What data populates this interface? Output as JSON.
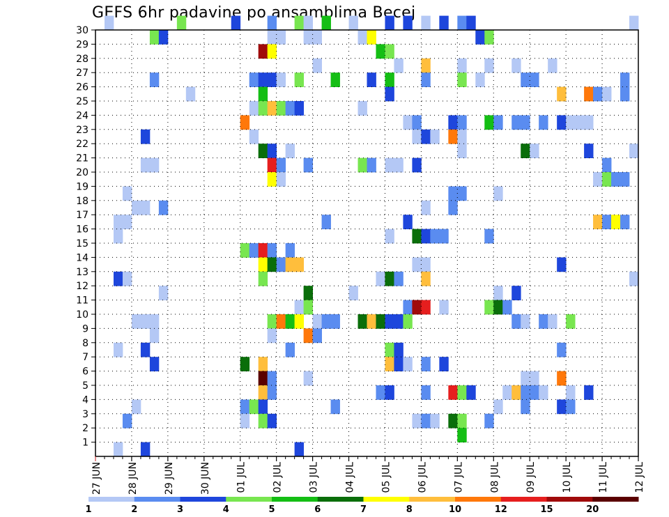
{
  "chart_data": {
    "type": "heatmap",
    "title": "GEFS 6hr padavine po ansamblima Becej",
    "xlabel": "",
    "ylabel": "",
    "x_tick_labels": [
      "27 JUN",
      "28 JUN",
      "29 JUN",
      "30 JUN",
      "01 JUL",
      "02 JUL",
      "03 JUL",
      "04 JUL",
      "05 JUL",
      "06 JUL",
      "07 JUL",
      "08 JUL",
      "09 JUL",
      "10 JUL",
      "11 JUL",
      "12 JUL"
    ],
    "y_tick_labels": [
      "1",
      "2",
      "3",
      "4",
      "5",
      "6",
      "7",
      "8",
      "9",
      "10",
      "11",
      "12",
      "13",
      "14",
      "15",
      "16",
      "17",
      "18",
      "19",
      "20",
      "21",
      "22",
      "23",
      "24",
      "25",
      "26",
      "27",
      "28",
      "29",
      "30"
    ],
    "xlim": [
      0,
      60
    ],
    "ylim": [
      0,
      30
    ],
    "x_unit": "6-hour steps from 27 JUN 00z",
    "grid": true,
    "legend": {
      "placement": "bottom",
      "thresholds": [
        "1",
        "2",
        "3",
        "4",
        "5",
        "6",
        "7",
        "8",
        "10",
        "12",
        "15",
        "20"
      ],
      "colors": [
        "#b4c8f5",
        "#5a8cf0",
        "#1e46dc",
        "#78e650",
        "#14be14",
        "#0a6e0a",
        "#ffff00",
        "#ffbe3c",
        "#ff780a",
        "#e61e1e",
        "#a00a0a",
        "#5a0000"
      ]
    },
    "cells": [
      [
        1,
        30,
        0
      ],
      [
        9,
        30,
        3
      ],
      [
        15,
        30,
        2
      ],
      [
        19,
        30,
        1
      ],
      [
        22,
        30,
        3
      ],
      [
        23,
        30,
        0
      ],
      [
        25,
        30,
        4
      ],
      [
        28,
        30,
        0
      ],
      [
        32,
        30,
        2
      ],
      [
        34,
        30,
        2
      ],
      [
        36,
        30,
        0
      ],
      [
        38,
        30,
        2
      ],
      [
        40,
        30,
        1
      ],
      [
        41,
        30,
        2
      ],
      [
        59,
        30,
        0
      ],
      [
        6,
        29,
        3
      ],
      [
        7,
        29,
        2
      ],
      [
        19,
        29,
        0
      ],
      [
        20,
        29,
        0
      ],
      [
        23,
        29,
        0
      ],
      [
        24,
        29,
        0
      ],
      [
        29,
        29,
        0
      ],
      [
        30,
        29,
        6
      ],
      [
        42,
        29,
        2
      ],
      [
        43,
        29,
        3
      ],
      [
        18,
        28,
        10
      ],
      [
        19,
        28,
        6
      ],
      [
        31,
        28,
        4
      ],
      [
        32,
        28,
        3
      ],
      [
        24,
        27,
        0
      ],
      [
        33,
        27,
        0
      ],
      [
        36,
        27,
        7
      ],
      [
        40,
        27,
        0
      ],
      [
        43,
        27,
        0
      ],
      [
        46,
        27,
        0
      ],
      [
        50,
        27,
        0
      ],
      [
        6,
        26,
        1
      ],
      [
        17,
        26,
        1
      ],
      [
        18,
        26,
        2
      ],
      [
        19,
        26,
        2
      ],
      [
        20,
        26,
        0
      ],
      [
        22,
        26,
        3
      ],
      [
        26,
        26,
        4
      ],
      [
        30,
        26,
        2
      ],
      [
        32,
        26,
        4
      ],
      [
        36,
        26,
        1
      ],
      [
        40,
        26,
        3
      ],
      [
        42,
        26,
        0
      ],
      [
        47,
        26,
        1
      ],
      [
        48,
        26,
        1
      ],
      [
        58,
        26,
        1
      ],
      [
        10,
        25,
        0
      ],
      [
        18,
        25,
        4
      ],
      [
        32,
        25,
        2
      ],
      [
        51,
        25,
        7
      ],
      [
        54,
        25,
        8
      ],
      [
        55,
        25,
        1
      ],
      [
        56,
        25,
        0
      ],
      [
        58,
        25,
        1
      ],
      [
        17,
        24,
        0
      ],
      [
        18,
        24,
        3
      ],
      [
        19,
        24,
        7
      ],
      [
        20,
        24,
        3
      ],
      [
        21,
        24,
        1
      ],
      [
        22,
        24,
        2
      ],
      [
        29,
        24,
        0
      ],
      [
        16,
        23,
        8
      ],
      [
        34,
        23,
        0
      ],
      [
        35,
        23,
        1
      ],
      [
        39,
        23,
        2
      ],
      [
        40,
        23,
        1
      ],
      [
        43,
        23,
        4
      ],
      [
        44,
        23,
        1
      ],
      [
        46,
        23,
        1
      ],
      [
        47,
        23,
        1
      ],
      [
        49,
        23,
        1
      ],
      [
        51,
        23,
        2
      ],
      [
        52,
        23,
        0
      ],
      [
        53,
        23,
        0
      ],
      [
        54,
        23,
        0
      ],
      [
        5,
        22,
        2
      ],
      [
        17,
        22,
        0
      ],
      [
        35,
        22,
        0
      ],
      [
        36,
        22,
        2
      ],
      [
        37,
        22,
        0
      ],
      [
        39,
        22,
        8
      ],
      [
        40,
        22,
        0
      ],
      [
        18,
        21,
        5
      ],
      [
        19,
        21,
        2
      ],
      [
        21,
        21,
        0
      ],
      [
        40,
        21,
        0
      ],
      [
        47,
        21,
        5
      ],
      [
        48,
        21,
        0
      ],
      [
        54,
        21,
        2
      ],
      [
        59,
        21,
        0
      ],
      [
        5,
        20,
        0
      ],
      [
        6,
        20,
        0
      ],
      [
        19,
        20,
        9
      ],
      [
        20,
        20,
        1
      ],
      [
        23,
        20,
        1
      ],
      [
        29,
        20,
        3
      ],
      [
        30,
        20,
        1
      ],
      [
        32,
        20,
        0
      ],
      [
        33,
        20,
        0
      ],
      [
        35,
        20,
        2
      ],
      [
        56,
        20,
        1
      ],
      [
        19,
        19,
        6
      ],
      [
        20,
        19,
        0
      ],
      [
        55,
        19,
        0
      ],
      [
        56,
        19,
        3
      ],
      [
        57,
        19,
        1
      ],
      [
        58,
        19,
        1
      ],
      [
        3,
        18,
        0
      ],
      [
        39,
        18,
        1
      ],
      [
        40,
        18,
        1
      ],
      [
        44,
        18,
        0
      ],
      [
        4,
        17,
        0
      ],
      [
        5,
        17,
        0
      ],
      [
        7,
        17,
        1
      ],
      [
        36,
        17,
        0
      ],
      [
        39,
        17,
        1
      ],
      [
        2,
        16,
        0
      ],
      [
        3,
        16,
        0
      ],
      [
        25,
        16,
        1
      ],
      [
        34,
        16,
        2
      ],
      [
        55,
        16,
        7
      ],
      [
        56,
        16,
        1
      ],
      [
        57,
        16,
        6
      ],
      [
        58,
        16,
        1
      ],
      [
        2,
        15,
        0
      ],
      [
        32,
        15,
        0
      ],
      [
        35,
        15,
        5
      ],
      [
        36,
        15,
        2
      ],
      [
        37,
        15,
        1
      ],
      [
        38,
        15,
        1
      ],
      [
        43,
        15,
        1
      ],
      [
        16,
        14,
        3
      ],
      [
        17,
        14,
        1
      ],
      [
        18,
        14,
        9
      ],
      [
        19,
        14,
        1
      ],
      [
        21,
        14,
        1
      ],
      [
        18,
        13,
        6
      ],
      [
        19,
        13,
        5
      ],
      [
        20,
        13,
        1
      ],
      [
        21,
        13,
        7
      ],
      [
        22,
        13,
        7
      ],
      [
        35,
        13,
        0
      ],
      [
        36,
        13,
        0
      ],
      [
        51,
        13,
        2
      ],
      [
        2,
        12,
        2
      ],
      [
        3,
        12,
        0
      ],
      [
        18,
        12,
        3
      ],
      [
        31,
        12,
        0
      ],
      [
        32,
        12,
        5
      ],
      [
        33,
        12,
        1
      ],
      [
        36,
        12,
        7
      ],
      [
        59,
        12,
        0
      ],
      [
        7,
        11,
        0
      ],
      [
        23,
        11,
        5
      ],
      [
        28,
        11,
        0
      ],
      [
        44,
        11,
        0
      ],
      [
        46,
        11,
        2
      ],
      [
        22,
        10,
        0
      ],
      [
        23,
        10,
        3
      ],
      [
        34,
        10,
        1
      ],
      [
        35,
        10,
        10
      ],
      [
        36,
        10,
        9
      ],
      [
        38,
        10,
        0
      ],
      [
        43,
        10,
        3
      ],
      [
        44,
        10,
        5
      ],
      [
        45,
        10,
        1
      ],
      [
        4,
        9,
        0
      ],
      [
        5,
        9,
        0
      ],
      [
        6,
        9,
        0
      ],
      [
        19,
        9,
        3
      ],
      [
        20,
        9,
        8
      ],
      [
        21,
        9,
        4
      ],
      [
        22,
        9,
        6
      ],
      [
        24,
        9,
        0
      ],
      [
        25,
        9,
        1
      ],
      [
        26,
        9,
        1
      ],
      [
        29,
        9,
        5
      ],
      [
        30,
        9,
        7
      ],
      [
        31,
        9,
        5
      ],
      [
        32,
        9,
        2
      ],
      [
        33,
        9,
        2
      ],
      [
        34,
        9,
        3
      ],
      [
        46,
        9,
        1
      ],
      [
        47,
        9,
        0
      ],
      [
        49,
        9,
        1
      ],
      [
        50,
        9,
        0
      ],
      [
        52,
        9,
        3
      ],
      [
        6,
        8,
        0
      ],
      [
        19,
        8,
        0
      ],
      [
        23,
        8,
        8
      ],
      [
        24,
        8,
        1
      ],
      [
        2,
        7,
        0
      ],
      [
        5,
        7,
        2
      ],
      [
        21,
        7,
        1
      ],
      [
        32,
        7,
        3
      ],
      [
        33,
        7,
        2
      ],
      [
        51,
        7,
        1
      ],
      [
        6,
        6,
        2
      ],
      [
        16,
        6,
        5
      ],
      [
        18,
        6,
        7
      ],
      [
        32,
        6,
        7
      ],
      [
        33,
        6,
        2
      ],
      [
        34,
        6,
        0
      ],
      [
        36,
        6,
        1
      ],
      [
        38,
        6,
        2
      ],
      [
        18,
        5,
        11
      ],
      [
        19,
        5,
        1
      ],
      [
        23,
        5,
        0
      ],
      [
        47,
        5,
        0
      ],
      [
        48,
        5,
        0
      ],
      [
        51,
        5,
        8
      ],
      [
        18,
        4,
        7
      ],
      [
        19,
        4,
        1
      ],
      [
        31,
        4,
        1
      ],
      [
        32,
        4,
        2
      ],
      [
        36,
        4,
        1
      ],
      [
        39,
        4,
        9
      ],
      [
        40,
        4,
        3
      ],
      [
        41,
        4,
        2
      ],
      [
        45,
        4,
        0
      ],
      [
        46,
        4,
        7
      ],
      [
        47,
        4,
        1
      ],
      [
        48,
        4,
        1
      ],
      [
        49,
        4,
        0
      ],
      [
        52,
        4,
        0
      ],
      [
        54,
        4,
        2
      ],
      [
        4,
        3,
        0
      ],
      [
        16,
        3,
        1
      ],
      [
        17,
        3,
        3
      ],
      [
        18,
        3,
        2
      ],
      [
        26,
        3,
        1
      ],
      [
        44,
        3,
        0
      ],
      [
        47,
        3,
        1
      ],
      [
        51,
        3,
        2
      ],
      [
        52,
        3,
        1
      ],
      [
        3,
        2,
        1
      ],
      [
        16,
        2,
        0
      ],
      [
        18,
        2,
        3
      ],
      [
        19,
        2,
        2
      ],
      [
        35,
        2,
        0
      ],
      [
        36,
        2,
        1
      ],
      [
        37,
        2,
        0
      ],
      [
        39,
        2,
        5
      ],
      [
        40,
        2,
        3
      ],
      [
        43,
        2,
        1
      ],
      [
        40,
        1,
        4
      ],
      [
        2,
        0,
        0
      ],
      [
        5,
        0,
        2
      ],
      [
        22,
        0,
        2
      ]
    ]
  }
}
